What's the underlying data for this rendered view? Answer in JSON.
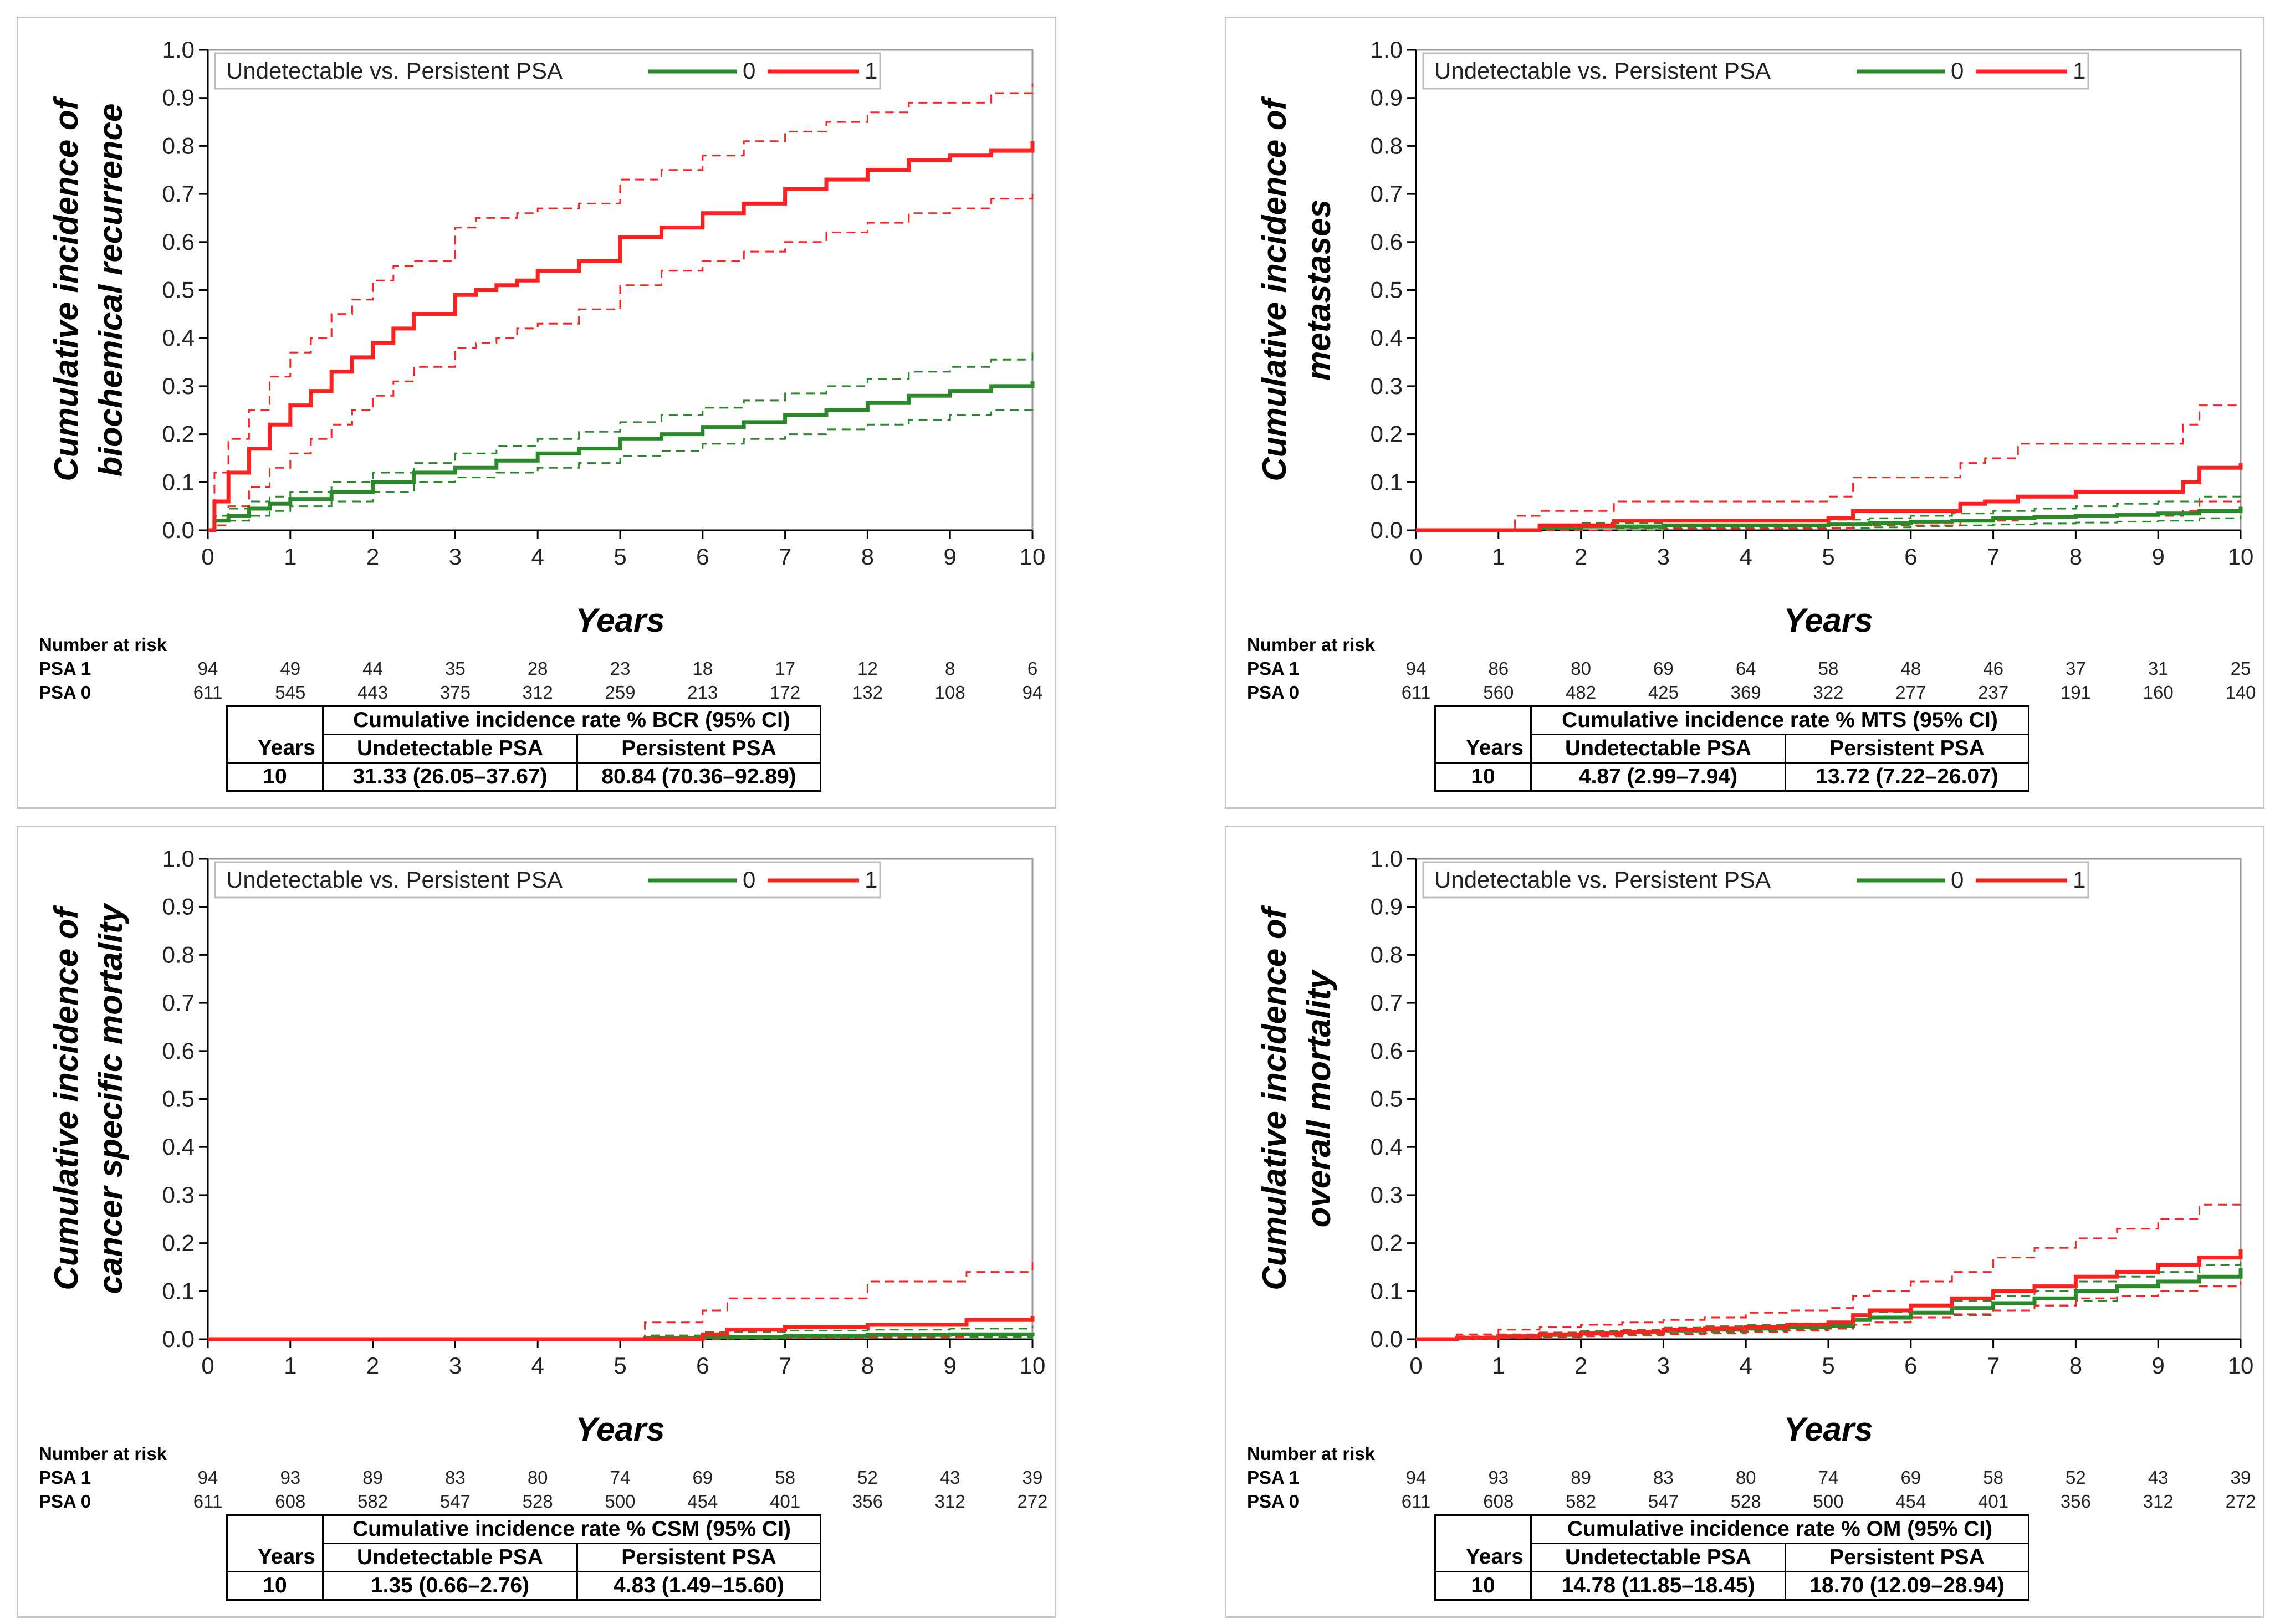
{
  "colors": {
    "group0": "#2a8a2a",
    "group1": "#ff2020",
    "axis": "#000000",
    "frame": "#c8c8c8"
  },
  "chart_data": [
    {
      "type": "line",
      "panel": "top-left",
      "title": "",
      "xlabel": "Years",
      "ylabel_lines": [
        "Cumulative incidence of",
        "biochemical recurrence"
      ],
      "xlim": [
        0,
        10
      ],
      "ylim": [
        0,
        1
      ],
      "x_ticks": [
        "0",
        "1",
        "2",
        "3",
        "4",
        "5",
        "6",
        "7",
        "8",
        "9",
        "10"
      ],
      "y_ticks": [
        "0.0",
        "0.1",
        "0.2",
        "0.3",
        "0.4",
        "0.5",
        "0.6",
        "0.7",
        "0.8",
        "0.9",
        "1.0"
      ],
      "legend": {
        "title": "Undetectable vs. Persistent PSA",
        "entries": [
          "0",
          "1"
        ],
        "position": "top-left"
      },
      "series": [
        {
          "name": "1",
          "color": "#ff2020",
          "x": [
            0,
            0.08,
            0.25,
            0.5,
            0.75,
            1,
            1.25,
            1.5,
            1.75,
            2,
            2.25,
            2.5,
            3,
            3.25,
            3.5,
            3.75,
            4,
            4.5,
            5,
            5.5,
            6,
            6.5,
            7,
            7.5,
            8,
            8.5,
            9,
            9.5,
            10
          ],
          "y": [
            0,
            0.06,
            0.12,
            0.17,
            0.22,
            0.26,
            0.29,
            0.33,
            0.36,
            0.39,
            0.42,
            0.45,
            0.49,
            0.5,
            0.51,
            0.52,
            0.54,
            0.56,
            0.61,
            0.63,
            0.66,
            0.68,
            0.71,
            0.73,
            0.75,
            0.77,
            0.78,
            0.79,
            0.81
          ],
          "lower": [
            0,
            0.01,
            0.05,
            0.09,
            0.13,
            0.16,
            0.19,
            0.22,
            0.25,
            0.28,
            0.31,
            0.34,
            0.38,
            0.39,
            0.4,
            0.42,
            0.43,
            0.46,
            0.51,
            0.54,
            0.56,
            0.58,
            0.6,
            0.62,
            0.64,
            0.66,
            0.67,
            0.69,
            0.7
          ],
          "upper": [
            0,
            0.12,
            0.19,
            0.25,
            0.32,
            0.37,
            0.4,
            0.45,
            0.48,
            0.52,
            0.55,
            0.56,
            0.63,
            0.65,
            0.65,
            0.66,
            0.67,
            0.68,
            0.73,
            0.75,
            0.78,
            0.81,
            0.83,
            0.85,
            0.87,
            0.89,
            0.89,
            0.91,
            0.93
          ]
        },
        {
          "name": "0",
          "color": "#2a8a2a",
          "x": [
            0,
            0.08,
            0.25,
            0.5,
            0.75,
            1,
            1.5,
            2,
            2.5,
            3,
            3.5,
            4,
            4.5,
            5,
            5.5,
            6,
            6.5,
            7,
            7.5,
            8,
            8.5,
            9,
            9.5,
            10
          ],
          "y": [
            0,
            0.02,
            0.03,
            0.045,
            0.055,
            0.065,
            0.08,
            0.1,
            0.12,
            0.13,
            0.145,
            0.16,
            0.17,
            0.19,
            0.2,
            0.215,
            0.225,
            0.24,
            0.25,
            0.265,
            0.28,
            0.29,
            0.3,
            0.31
          ],
          "lower": [
            0,
            0.01,
            0.02,
            0.03,
            0.04,
            0.05,
            0.06,
            0.08,
            0.1,
            0.11,
            0.12,
            0.13,
            0.14,
            0.155,
            0.165,
            0.18,
            0.19,
            0.2,
            0.21,
            0.22,
            0.23,
            0.24,
            0.25,
            0.26
          ],
          "upper": [
            0,
            0.03,
            0.045,
            0.06,
            0.07,
            0.08,
            0.1,
            0.12,
            0.14,
            0.16,
            0.175,
            0.19,
            0.205,
            0.225,
            0.24,
            0.255,
            0.27,
            0.285,
            0.3,
            0.315,
            0.33,
            0.34,
            0.355,
            0.37
          ]
        }
      ],
      "risk_table": {
        "header": "Number at risk",
        "rows": [
          {
            "label": "PSA 1",
            "values": [
              "94",
              "49",
              "44",
              "35",
              "28",
              "23",
              "18",
              "17",
              "12",
              "8",
              "6"
            ]
          },
          {
            "label": "PSA 0",
            "values": [
              "611",
              "545",
              "443",
              "375",
              "312",
              "259",
              "213",
              "172",
              "132",
              "108",
              "94"
            ]
          }
        ]
      },
      "ci_table": {
        "title": "Cumulative incidence rate % BCR (95% CI)",
        "col_year": "Years",
        "col_a": "Undetectable PSA",
        "col_b": "Persistent PSA",
        "year": "10",
        "val_a": "31.33 (26.05–37.67)",
        "val_b": "80.84 (70.36–92.89)"
      }
    },
    {
      "type": "line",
      "panel": "top-right",
      "title": "",
      "xlabel": "Years",
      "ylabel_lines": [
        "Cumulative incidence of",
        "metastases"
      ],
      "xlim": [
        0,
        10
      ],
      "ylim": [
        0,
        1
      ],
      "x_ticks": [
        "0",
        "1",
        "2",
        "3",
        "4",
        "5",
        "6",
        "7",
        "8",
        "9",
        "10"
      ],
      "y_ticks": [
        "0.0",
        "0.1",
        "0.2",
        "0.3",
        "0.4",
        "0.5",
        "0.6",
        "0.7",
        "0.8",
        "0.9",
        "1.0"
      ],
      "legend": {
        "title": "Undetectable vs. Persistent PSA",
        "entries": [
          "0",
          "1"
        ],
        "position": "top-left"
      },
      "series": [
        {
          "name": "1",
          "color": "#ff2020",
          "x": [
            0,
            1.2,
            1.5,
            2.4,
            3,
            5,
            5.3,
            6,
            6.6,
            6.9,
            7.3,
            8,
            8.5,
            9.3,
            9.5,
            10
          ],
          "y": [
            0,
            0,
            0.01,
            0.02,
            0.02,
            0.025,
            0.04,
            0.04,
            0.055,
            0.06,
            0.07,
            0.08,
            0.08,
            0.1,
            0.13,
            0.14
          ],
          "lower": [
            0,
            0,
            0,
            0.005,
            0.005,
            0.005,
            0.01,
            0.01,
            0.02,
            0.02,
            0.025,
            0.03,
            0.03,
            0.04,
            0.06,
            0.06
          ],
          "upper": [
            0,
            0.03,
            0.04,
            0.06,
            0.06,
            0.07,
            0.11,
            0.11,
            0.14,
            0.15,
            0.18,
            0.18,
            0.18,
            0.22,
            0.26,
            0.26
          ]
        },
        {
          "name": "0",
          "color": "#2a8a2a",
          "x": [
            0,
            1.5,
            2,
            3,
            4,
            5,
            5.5,
            6,
            6.5,
            7,
            7.5,
            8,
            8.5,
            9,
            9.5,
            10
          ],
          "y": [
            0,
            0.005,
            0.008,
            0.01,
            0.01,
            0.012,
            0.015,
            0.018,
            0.02,
            0.025,
            0.028,
            0.03,
            0.032,
            0.035,
            0.04,
            0.049
          ],
          "lower": [
            0,
            0,
            0,
            0.003,
            0.003,
            0.004,
            0.006,
            0.008,
            0.01,
            0.012,
            0.014,
            0.016,
            0.018,
            0.02,
            0.025,
            0.03
          ],
          "upper": [
            0,
            0.012,
            0.015,
            0.018,
            0.02,
            0.022,
            0.025,
            0.03,
            0.035,
            0.04,
            0.045,
            0.05,
            0.055,
            0.06,
            0.07,
            0.08
          ]
        }
      ],
      "risk_table": {
        "header": "Number at risk",
        "rows": [
          {
            "label": "PSA 1",
            "values": [
              "94",
              "86",
              "80",
              "69",
              "64",
              "58",
              "48",
              "46",
              "37",
              "31",
              "25"
            ]
          },
          {
            "label": "PSA 0",
            "values": [
              "611",
              "560",
              "482",
              "425",
              "369",
              "322",
              "277",
              "237",
              "191",
              "160",
              "140"
            ]
          }
        ]
      },
      "ci_table": {
        "title": "Cumulative incidence rate % MTS (95% CI)",
        "col_year": "Years",
        "col_a": "Undetectable PSA",
        "col_b": "Persistent PSA",
        "year": "10",
        "val_a": "4.87 (2.99–7.94)",
        "val_b": "13.72 (7.22–26.07)"
      }
    },
    {
      "type": "line",
      "panel": "bottom-left",
      "title": "",
      "xlabel": "Years",
      "ylabel_lines": [
        "Cumulative incidence of",
        "cancer specific mortality"
      ],
      "xlim": [
        0,
        10
      ],
      "ylim": [
        0,
        1
      ],
      "x_ticks": [
        "0",
        "1",
        "2",
        "3",
        "4",
        "5",
        "6",
        "7",
        "8",
        "9",
        "10"
      ],
      "y_ticks": [
        "0.0",
        "0.1",
        "0.2",
        "0.3",
        "0.4",
        "0.5",
        "0.6",
        "0.7",
        "0.8",
        "0.9",
        "1.0"
      ],
      "legend": {
        "title": "Undetectable vs. Persistent PSA",
        "entries": [
          "0",
          "1"
        ],
        "position": "top-left"
      },
      "series": [
        {
          "name": "1",
          "color": "#ff2020",
          "x": [
            0,
            5.3,
            6,
            6.3,
            7,
            8,
            9.2,
            10
          ],
          "y": [
            0,
            0,
            0.01,
            0.02,
            0.025,
            0.03,
            0.04,
            0.048
          ],
          "lower": [
            0,
            0,
            0,
            0.002,
            0.003,
            0.004,
            0.008,
            0.015
          ],
          "upper": [
            0,
            0.035,
            0.06,
            0.085,
            0.085,
            0.12,
            0.14,
            0.16
          ]
        },
        {
          "name": "0",
          "color": "#2a8a2a",
          "x": [
            0,
            5.3,
            6,
            7,
            8,
            9,
            10
          ],
          "y": [
            0,
            0.002,
            0.005,
            0.007,
            0.009,
            0.01,
            0.014
          ],
          "lower": [
            0,
            0,
            0.001,
            0.002,
            0.003,
            0.004,
            0.007
          ],
          "upper": [
            0,
            0.008,
            0.015,
            0.018,
            0.02,
            0.022,
            0.028
          ]
        }
      ],
      "risk_table": {
        "header": "Number at risk",
        "rows": [
          {
            "label": "PSA 1",
            "values": [
              "94",
              "93",
              "89",
              "83",
              "80",
              "74",
              "69",
              "58",
              "52",
              "43",
              "39"
            ]
          },
          {
            "label": "PSA 0",
            "values": [
              "611",
              "608",
              "582",
              "547",
              "528",
              "500",
              "454",
              "401",
              "356",
              "312",
              "272"
            ]
          }
        ]
      },
      "ci_table": {
        "title": "Cumulative incidence rate % CSM (95% CI)",
        "col_year": "Years",
        "col_a": "Undetectable PSA",
        "col_b": "Persistent PSA",
        "year": "10",
        "val_a": "1.35 (0.66–2.76)",
        "val_b": "4.83 (1.49–15.60)"
      }
    },
    {
      "type": "line",
      "panel": "bottom-right",
      "title": "",
      "xlabel": "Years",
      "ylabel_lines": [
        "Cumulative incidence of",
        "overall mortality"
      ],
      "xlim": [
        0,
        10
      ],
      "ylim": [
        0,
        1
      ],
      "x_ticks": [
        "0",
        "1",
        "2",
        "3",
        "4",
        "5",
        "6",
        "7",
        "8",
        "9",
        "10"
      ],
      "y_ticks": [
        "0.0",
        "0.1",
        "0.2",
        "0.3",
        "0.4",
        "0.5",
        "0.6",
        "0.7",
        "0.8",
        "0.9",
        "1.0"
      ],
      "legend": {
        "title": "Undetectable vs. Persistent PSA",
        "entries": [
          "0",
          "1"
        ],
        "position": "top-left"
      },
      "series": [
        {
          "name": "1",
          "color": "#ff2020",
          "x": [
            0,
            0.5,
            1,
            1.5,
            2,
            2.5,
            3,
            3.5,
            4,
            4.5,
            5,
            5.3,
            5.5,
            6,
            6.5,
            7,
            7.5,
            8,
            8.5,
            9,
            9.5,
            10
          ],
          "y": [
            0,
            0.003,
            0.006,
            0.01,
            0.012,
            0.015,
            0.02,
            0.022,
            0.025,
            0.03,
            0.035,
            0.05,
            0.06,
            0.07,
            0.085,
            0.1,
            0.11,
            0.13,
            0.14,
            0.155,
            0.17,
            0.187
          ],
          "lower": [
            0,
            0,
            0.002,
            0.004,
            0.006,
            0.008,
            0.01,
            0.012,
            0.015,
            0.018,
            0.022,
            0.03,
            0.035,
            0.045,
            0.05,
            0.06,
            0.07,
            0.085,
            0.09,
            0.1,
            0.11,
            0.12
          ],
          "upper": [
            0,
            0.01,
            0.02,
            0.025,
            0.03,
            0.035,
            0.04,
            0.045,
            0.055,
            0.06,
            0.065,
            0.09,
            0.1,
            0.12,
            0.14,
            0.17,
            0.19,
            0.21,
            0.23,
            0.25,
            0.28,
            0.29
          ]
        },
        {
          "name": "0",
          "color": "#2a8a2a",
          "x": [
            0,
            0.5,
            1,
            1.5,
            2,
            2.5,
            3,
            3.5,
            4,
            4.5,
            5,
            5.3,
            5.5,
            6,
            6.5,
            7,
            7.5,
            8,
            8.5,
            9,
            9.5,
            10
          ],
          "y": [
            0,
            0.003,
            0.006,
            0.009,
            0.012,
            0.015,
            0.018,
            0.02,
            0.022,
            0.025,
            0.028,
            0.04,
            0.045,
            0.055,
            0.065,
            0.075,
            0.085,
            0.1,
            0.11,
            0.12,
            0.13,
            0.148
          ],
          "lower": [
            0,
            0.001,
            0.003,
            0.005,
            0.008,
            0.01,
            0.012,
            0.015,
            0.017,
            0.02,
            0.022,
            0.03,
            0.035,
            0.045,
            0.052,
            0.06,
            0.07,
            0.08,
            0.09,
            0.1,
            0.11,
            0.12
          ],
          "upper": [
            0,
            0.006,
            0.01,
            0.014,
            0.017,
            0.02,
            0.024,
            0.027,
            0.03,
            0.033,
            0.036,
            0.05,
            0.056,
            0.068,
            0.08,
            0.09,
            0.1,
            0.12,
            0.13,
            0.14,
            0.155,
            0.18
          ]
        }
      ],
      "risk_table": {
        "header": "Number at risk",
        "rows": [
          {
            "label": "PSA 1",
            "values": [
              "94",
              "93",
              "89",
              "83",
              "80",
              "74",
              "69",
              "58",
              "52",
              "43",
              "39"
            ]
          },
          {
            "label": "PSA 0",
            "values": [
              "611",
              "608",
              "582",
              "547",
              "528",
              "500",
              "454",
              "401",
              "356",
              "312",
              "272"
            ]
          }
        ]
      },
      "ci_table": {
        "title": "Cumulative incidence rate % OM (95% CI)",
        "col_year": "Years",
        "col_a": "Undetectable PSA",
        "col_b": "Persistent PSA",
        "year": "10",
        "val_a": "14.78 (11.85–18.45)",
        "val_b": "18.70 (12.09–28.94)"
      }
    }
  ]
}
